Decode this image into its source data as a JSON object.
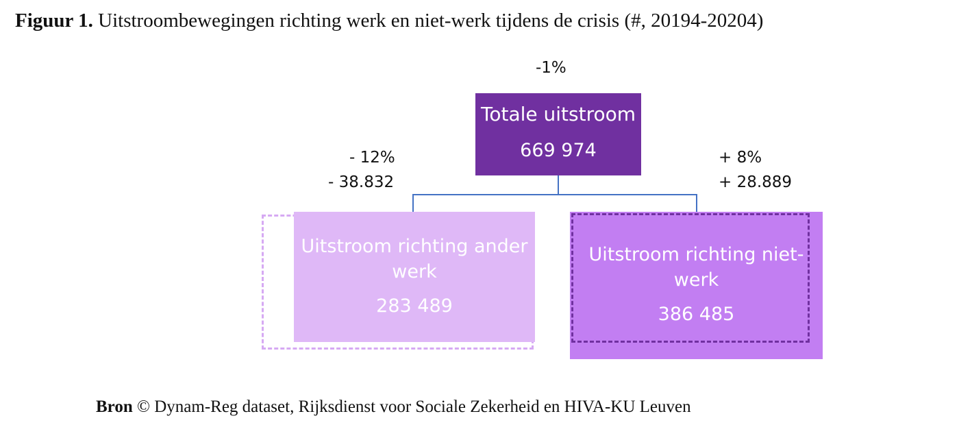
{
  "title": {
    "prefix": "Figuur 1.",
    "text": "Uitstroombewegingen richting werk en niet-werk tijdens de crisis (#, 20194-20204)"
  },
  "total": {
    "change_pct": "-1%",
    "label": "Totale uitstroom",
    "value": "669 974"
  },
  "left": {
    "change_pct": "- 12%",
    "change_abs": "- 38.832",
    "label": "Uitstroom richting ander werk",
    "value": "283 489"
  },
  "right": {
    "change_pct": "+ 8%",
    "change_abs": "+ 28.889",
    "label": "Uitstroom richting niet-werk",
    "value": "386 485"
  },
  "source": {
    "prefix": "Bron",
    "text": "© Dynam-Reg dataset, Rijksdienst voor Sociale Zekerheid en HIVA-KU Leuven"
  },
  "colors": {
    "total_box": "#7030a0",
    "left_box": "#dfb8f7",
    "right_box": "#c27ef2",
    "connector": "#4472c4"
  }
}
